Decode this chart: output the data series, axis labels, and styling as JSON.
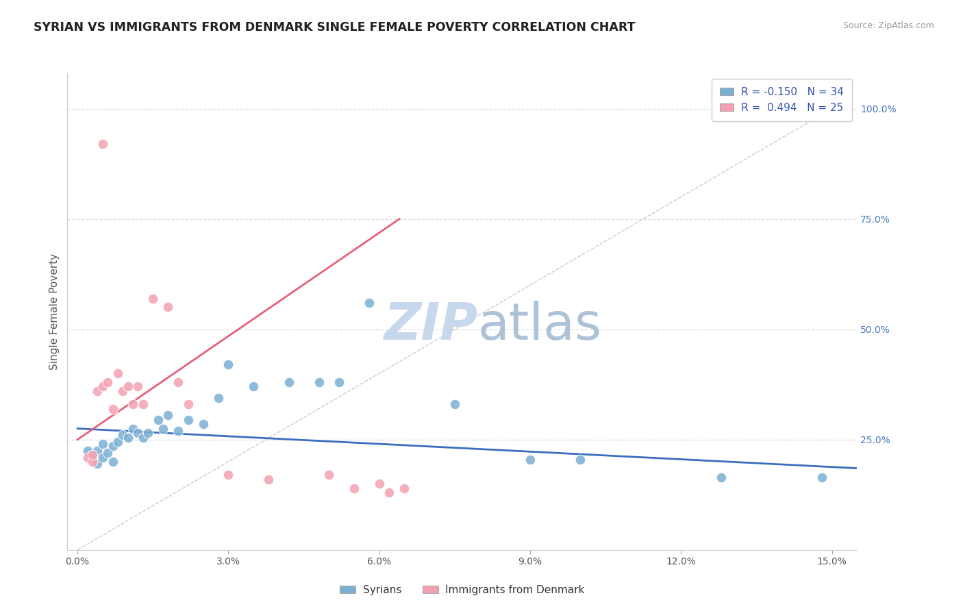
{
  "title": "SYRIAN VS IMMIGRANTS FROM DENMARK SINGLE FEMALE POVERTY CORRELATION CHART",
  "source": "Source: ZipAtlas.com",
  "ylabel": "Single Female Poverty",
  "ytick_labels": [
    "100.0%",
    "75.0%",
    "50.0%",
    "25.0%"
  ],
  "ytick_values": [
    1.0,
    0.75,
    0.5,
    0.25
  ],
  "xtick_values": [
    0.0,
    0.03,
    0.06,
    0.09,
    0.12,
    0.15
  ],
  "xtick_labels": [
    "0.0%",
    "3.0%",
    "6.0%",
    "9.0%",
    "12.0%",
    "15.0%"
  ],
  "xmin": -0.002,
  "xmax": 0.155,
  "ymin": 0.0,
  "ymax": 1.08,
  "legend_blue_label": "Syrians",
  "legend_pink_label": "Immigrants from Denmark",
  "r_blue": -0.15,
  "n_blue": 34,
  "r_pink": 0.494,
  "n_pink": 25,
  "blue_color": "#7BAFD4",
  "pink_color": "#F4A0B0",
  "blue_line_color": "#3B6EBF",
  "pink_line_color": "#E8607A",
  "diag_line_color": "#CCCCCC",
  "grid_color": "#DDDDDD",
  "watermark_color": "#C8D8EC",
  "blue_scatter_x": [
    0.002,
    0.003,
    0.004,
    0.004,
    0.005,
    0.005,
    0.006,
    0.007,
    0.007,
    0.008,
    0.009,
    0.01,
    0.011,
    0.012,
    0.013,
    0.014,
    0.016,
    0.017,
    0.018,
    0.02,
    0.022,
    0.025,
    0.028,
    0.03,
    0.035,
    0.042,
    0.048,
    0.052,
    0.058,
    0.075,
    0.09,
    0.1,
    0.128,
    0.148
  ],
  "blue_scatter_y": [
    0.225,
    0.215,
    0.195,
    0.225,
    0.21,
    0.24,
    0.22,
    0.2,
    0.235,
    0.245,
    0.26,
    0.255,
    0.275,
    0.265,
    0.255,
    0.265,
    0.295,
    0.275,
    0.305,
    0.27,
    0.295,
    0.285,
    0.345,
    0.42,
    0.37,
    0.38,
    0.38,
    0.38,
    0.56,
    0.33,
    0.205,
    0.205,
    0.165,
    0.165
  ],
  "pink_scatter_x": [
    0.002,
    0.003,
    0.003,
    0.004,
    0.005,
    0.006,
    0.007,
    0.008,
    0.009,
    0.01,
    0.011,
    0.012,
    0.013,
    0.015,
    0.018,
    0.02,
    0.022,
    0.03,
    0.038,
    0.05,
    0.055,
    0.06,
    0.062,
    0.065,
    0.005
  ],
  "pink_scatter_y": [
    0.21,
    0.2,
    0.215,
    0.36,
    0.37,
    0.38,
    0.32,
    0.4,
    0.36,
    0.37,
    0.33,
    0.37,
    0.33,
    0.57,
    0.55,
    0.38,
    0.33,
    0.17,
    0.16,
    0.17,
    0.14,
    0.15,
    0.13,
    0.14,
    0.92
  ],
  "blue_line_x": [
    0.0,
    0.155
  ],
  "blue_line_y": [
    0.275,
    0.185
  ],
  "pink_line_x": [
    0.0,
    0.064
  ],
  "pink_line_y": [
    0.25,
    0.75
  ]
}
